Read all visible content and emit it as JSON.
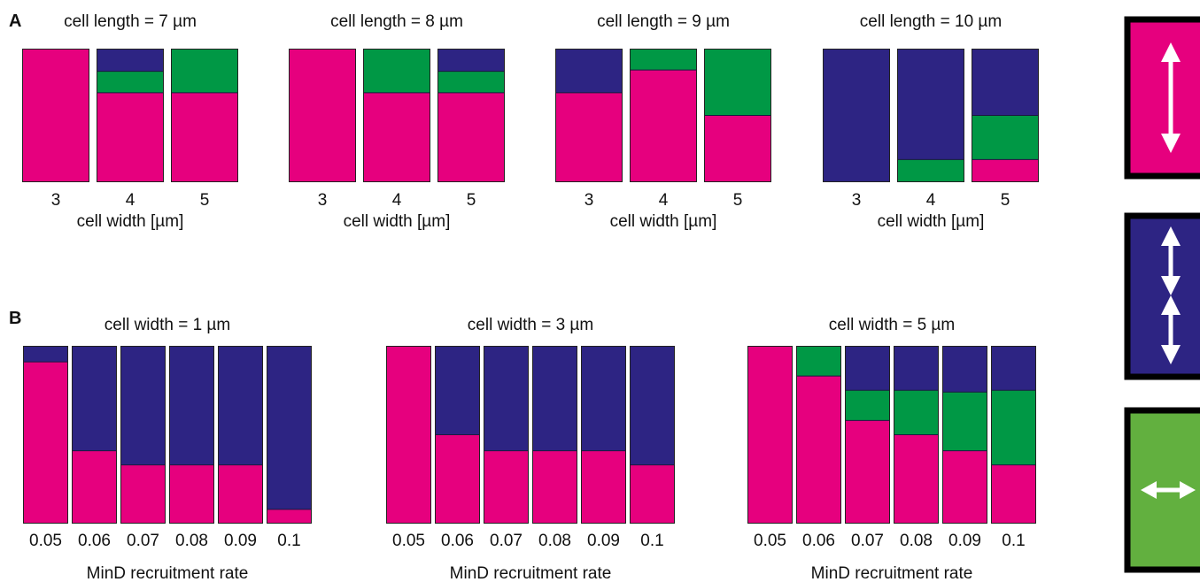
{
  "colors": {
    "pole_to_pole": "#e6007e",
    "striped": "#2d2483",
    "transverse": "#009845",
    "legend_pole_to_pole": "#e6007e",
    "legend_striped": "#2d2483",
    "legend_transverse": "#62b03f",
    "arrow": "#ffffff",
    "frame": "#000000"
  },
  "panels": {
    "A": {
      "label": "A",
      "xlabel": "cell width [µm]"
    },
    "B": {
      "label": "B",
      "xlabel": "MinD recruitment rate"
    }
  },
  "legend": [
    {
      "color_key": "legend_pole_to_pole",
      "icon": "single-vertical-double-arrow-icon"
    },
    {
      "color_key": "legend_striped",
      "icon": "two-vertical-double-arrows-icon"
    },
    {
      "color_key": "legend_transverse",
      "icon": "horizontal-double-arrow-icon"
    }
  ],
  "chart_data": [
    {
      "type": "bar",
      "stacked": true,
      "panel": "A",
      "title": "cell length = 7 µm",
      "xlabel": "cell width [µm]",
      "categories": [
        "3",
        "4",
        "5"
      ],
      "ylim": [
        0,
        1
      ],
      "series": [
        {
          "color_key": "pole_to_pole",
          "values": [
            1.0,
            0.67,
            0.67
          ]
        },
        {
          "color_key": "transverse",
          "values": [
            0.0,
            0.16,
            0.33
          ]
        },
        {
          "color_key": "striped",
          "values": [
            0.0,
            0.17,
            0.0
          ]
        }
      ]
    },
    {
      "type": "bar",
      "stacked": true,
      "panel": "A",
      "title": "cell length = 8 µm",
      "xlabel": "cell width [µm]",
      "categories": [
        "3",
        "4",
        "5"
      ],
      "ylim": [
        0,
        1
      ],
      "series": [
        {
          "color_key": "pole_to_pole",
          "values": [
            1.0,
            0.67,
            0.67
          ]
        },
        {
          "color_key": "transverse",
          "values": [
            0.0,
            0.33,
            0.16
          ]
        },
        {
          "color_key": "striped",
          "values": [
            0.0,
            0.0,
            0.17
          ]
        }
      ]
    },
    {
      "type": "bar",
      "stacked": true,
      "panel": "A",
      "title": "cell length = 9 µm",
      "xlabel": "cell width [µm]",
      "categories": [
        "3",
        "4",
        "5"
      ],
      "ylim": [
        0,
        1
      ],
      "series": [
        {
          "color_key": "pole_to_pole",
          "values": [
            0.67,
            0.84,
            0.5
          ]
        },
        {
          "color_key": "transverse",
          "values": [
            0.0,
            0.16,
            0.5
          ]
        },
        {
          "color_key": "striped",
          "values": [
            0.33,
            0.0,
            0.0
          ]
        }
      ]
    },
    {
      "type": "bar",
      "stacked": true,
      "panel": "A",
      "title": "cell length = 10 µm",
      "xlabel": "cell width [µm]",
      "categories": [
        "3",
        "4",
        "5"
      ],
      "ylim": [
        0,
        1
      ],
      "series": [
        {
          "color_key": "pole_to_pole",
          "values": [
            0.0,
            0.0,
            0.17
          ]
        },
        {
          "color_key": "transverse",
          "values": [
            0.0,
            0.17,
            0.33
          ]
        },
        {
          "color_key": "striped",
          "values": [
            1.0,
            0.83,
            0.5
          ]
        }
      ]
    },
    {
      "type": "bar",
      "stacked": true,
      "panel": "B",
      "title": "cell width = 1 µm",
      "xlabel": "MinD recruitment rate",
      "categories": [
        "0.05",
        "0.06",
        "0.07",
        "0.08",
        "0.09",
        "0.1"
      ],
      "ylim": [
        0,
        1
      ],
      "series": [
        {
          "color_key": "pole_to_pole",
          "values": [
            0.91,
            0.41,
            0.33,
            0.33,
            0.33,
            0.08
          ]
        },
        {
          "color_key": "transverse",
          "values": [
            0,
            0,
            0,
            0,
            0,
            0
          ]
        },
        {
          "color_key": "striped",
          "values": [
            0.09,
            0.59,
            0.67,
            0.67,
            0.67,
            0.92
          ]
        }
      ]
    },
    {
      "type": "bar",
      "stacked": true,
      "panel": "B",
      "title": "cell width = 3 µm",
      "xlabel": "MinD recruitment rate",
      "categories": [
        "0.05",
        "0.06",
        "0.07",
        "0.08",
        "0.09",
        "0.1"
      ],
      "ylim": [
        0,
        1
      ],
      "series": [
        {
          "color_key": "pole_to_pole",
          "values": [
            1.0,
            0.5,
            0.41,
            0.41,
            0.41,
            0.33
          ]
        },
        {
          "color_key": "transverse",
          "values": [
            0,
            0,
            0,
            0,
            0,
            0
          ]
        },
        {
          "color_key": "striped",
          "values": [
            0.0,
            0.5,
            0.59,
            0.59,
            0.59,
            0.67
          ]
        }
      ]
    },
    {
      "type": "bar",
      "stacked": true,
      "panel": "B",
      "title": "cell width = 5 µm",
      "xlabel": "MinD recruitment rate",
      "categories": [
        "0.05",
        "0.06",
        "0.07",
        "0.08",
        "0.09",
        "0.1"
      ],
      "ylim": [
        0,
        1
      ],
      "series": [
        {
          "color_key": "pole_to_pole",
          "values": [
            1.0,
            0.83,
            0.58,
            0.5,
            0.41,
            0.33
          ]
        },
        {
          "color_key": "transverse",
          "values": [
            0.0,
            0.17,
            0.17,
            0.25,
            0.33,
            0.42
          ]
        },
        {
          "color_key": "striped",
          "values": [
            0.0,
            0.0,
            0.25,
            0.25,
            0.26,
            0.25
          ]
        }
      ]
    }
  ]
}
